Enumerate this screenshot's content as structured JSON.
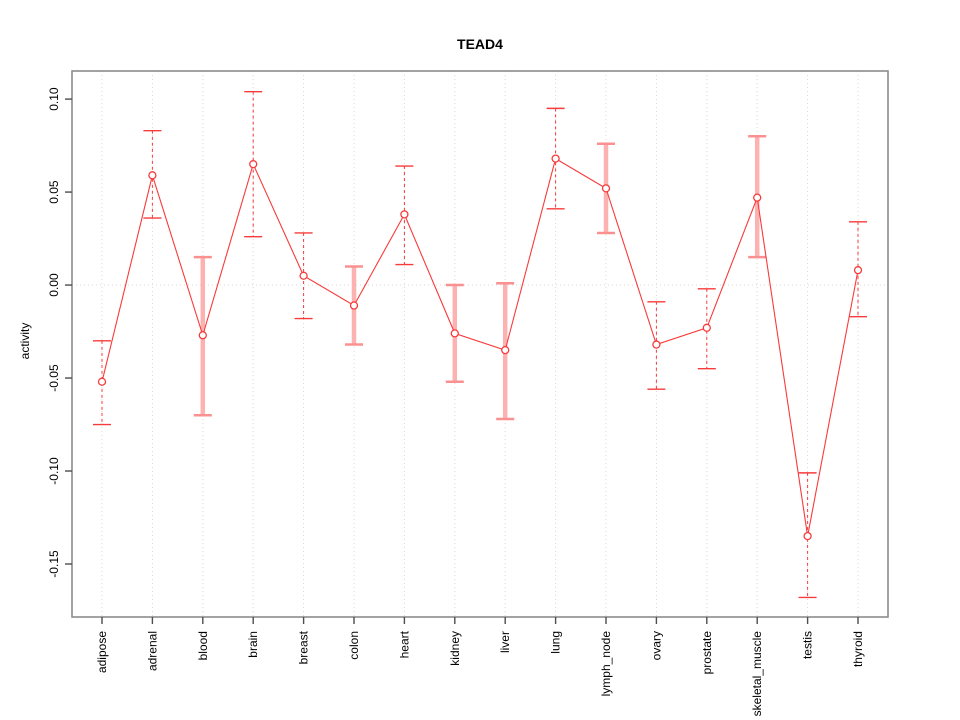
{
  "chart_data": {
    "type": "line",
    "title": "TEAD4",
    "ylabel": "activity",
    "xlabel": "",
    "categories": [
      "adipose",
      "adrenal",
      "blood",
      "brain",
      "breast",
      "colon",
      "heart",
      "kidney",
      "liver",
      "lung",
      "lymph_node",
      "ovary",
      "prostate",
      "skeletal_muscle",
      "testis",
      "thyroid"
    ],
    "series": [
      {
        "name": "activity",
        "values": [
          -0.052,
          0.059,
          -0.027,
          0.065,
          0.005,
          -0.011,
          0.038,
          -0.026,
          -0.035,
          0.068,
          0.052,
          -0.032,
          -0.023,
          0.047,
          -0.135,
          0.008
        ],
        "ci_lower": [
          -0.075,
          0.036,
          -0.07,
          0.026,
          -0.018,
          -0.032,
          0.011,
          -0.052,
          -0.072,
          0.041,
          0.028,
          -0.056,
          -0.045,
          0.015,
          -0.168,
          -0.017
        ],
        "ci_upper": [
          -0.03,
          0.083,
          0.015,
          0.104,
          0.028,
          0.01,
          0.064,
          0.0,
          0.001,
          0.095,
          0.076,
          -0.009,
          -0.002,
          0.08,
          -0.101,
          0.034
        ],
        "errorbar_style": [
          "dashed",
          "dashed",
          "thick",
          "dashed",
          "dashed",
          "thick",
          "dashed",
          "thick",
          "thick",
          "dashed",
          "thick",
          "dashed",
          "dashed",
          "thick",
          "dashed",
          "dashed"
        ]
      }
    ],
    "ytick_labels": [
      "0.10",
      "0.05",
      "0.00",
      "-0.05",
      "-0.10",
      "-0.15"
    ],
    "ylim": [
      -0.1785,
      0.1151
    ],
    "grid": {
      "vertical_dotted_per_category": true,
      "horizontal_dotted_at_zero": true
    },
    "legend": "none",
    "marker": "open-circle",
    "colors": {
      "line": "#f83a3a",
      "thick_bar": "#fdb2b2",
      "thick_cap": "#fa9090",
      "grid": "#d8d8d8",
      "box": "#8c8c8c",
      "tick": "#4d4d4d",
      "text": "#000000",
      "background": "#ffffff"
    }
  }
}
